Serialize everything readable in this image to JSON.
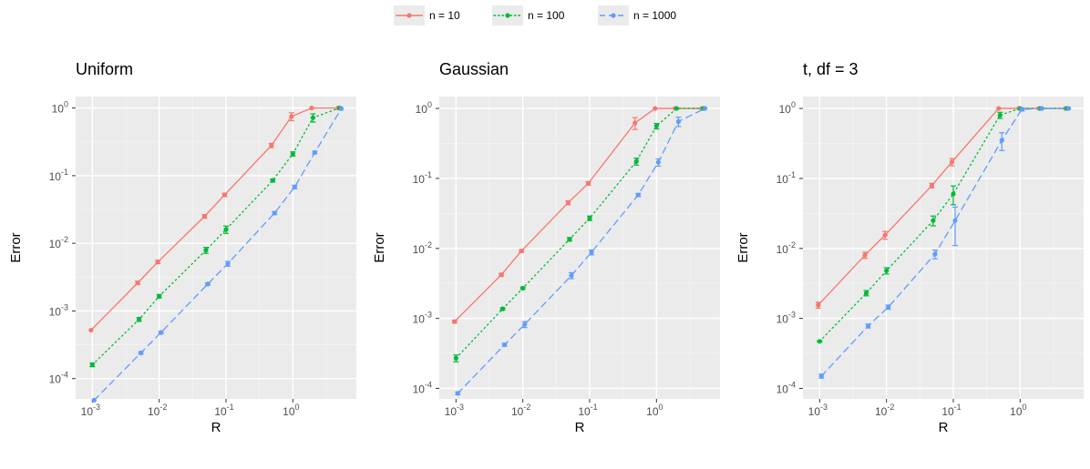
{
  "legend": {
    "items": [
      {
        "label": "n = 10",
        "color": "#F8766D",
        "dash": "solid"
      },
      {
        "label": "n = 100",
        "color": "#00BA38",
        "dash": "dotted"
      },
      {
        "label": "n = 1000",
        "color": "#619CFF",
        "dash": "dashed"
      }
    ]
  },
  "chart_data": [
    {
      "type": "line",
      "title": "Uniform",
      "xlabel": "R",
      "ylabel": "Error",
      "x_scale": "log10",
      "y_scale": "log10",
      "x_ticks": [
        "10^-3",
        "10^-2",
        "10^-1",
        "10^0"
      ],
      "y_ticks": [
        "10^-4",
        "10^-3",
        "10^-2",
        "10^-1",
        "10^0"
      ],
      "series": [
        {
          "name": "n = 10",
          "x": [
            0.001,
            0.005,
            0.01,
            0.05,
            0.1,
            0.5,
            1,
            2,
            5
          ],
          "y": [
            0.00052,
            0.0026,
            0.0053,
            0.025,
            0.052,
            0.28,
            0.75,
            1.0,
            1.0
          ],
          "err": [
            0,
            0.00015,
            0.0003,
            0.0015,
            0.003,
            0.02,
            0.1,
            0,
            0
          ]
        },
        {
          "name": "n = 100",
          "x": [
            0.001,
            0.005,
            0.01,
            0.05,
            0.1,
            0.5,
            1,
            2,
            5
          ],
          "y": [
            0.00016,
            0.00075,
            0.00165,
            0.0079,
            0.016,
            0.085,
            0.21,
            0.72,
            1.0
          ],
          "err": [
            1e-05,
            5e-05,
            0.0001,
            0.0008,
            0.002,
            0.004,
            0.015,
            0.1,
            0
          ]
        },
        {
          "name": "n = 1000",
          "x": [
            0.001,
            0.005,
            0.01,
            0.05,
            0.1,
            0.5,
            1,
            2,
            5
          ],
          "y": [
            4.8e-05,
            0.00024,
            0.00048,
            0.0025,
            0.005,
            0.028,
            0.068,
            0.22,
            0.98
          ],
          "err": [
            0,
            1e-05,
            2e-05,
            0.0001,
            0.0004,
            0.0015,
            0.004,
            0.01,
            0
          ]
        }
      ]
    },
    {
      "type": "line",
      "title": "Gaussian",
      "xlabel": "R",
      "ylabel": "Error",
      "x_scale": "log10",
      "y_scale": "log10",
      "x_ticks": [
        "10^-3",
        "10^-2",
        "10^-1",
        "10^0"
      ],
      "y_ticks": [
        "10^-4",
        "10^-3",
        "10^-2",
        "10^-1",
        "10^0"
      ],
      "series": [
        {
          "name": "n = 10",
          "x": [
            0.001,
            0.005,
            0.01,
            0.05,
            0.1,
            0.5,
            1,
            2,
            5
          ],
          "y": [
            0.0009,
            0.0042,
            0.0092,
            0.045,
            0.085,
            0.62,
            1.0,
            1.0,
            1.0
          ],
          "err": [
            4e-05,
            0.0002,
            0.0004,
            0.003,
            0.005,
            0.12,
            0,
            0,
            0
          ]
        },
        {
          "name": "n = 100",
          "x": [
            0.001,
            0.005,
            0.01,
            0.05,
            0.1,
            0.5,
            1,
            2,
            5
          ],
          "y": [
            0.00027,
            0.00137,
            0.0027,
            0.0135,
            0.027,
            0.175,
            0.56,
            1.0,
            1.0
          ],
          "err": [
            3e-05,
            5e-05,
            0.0001,
            0.0008,
            0.002,
            0.02,
            0.05,
            0,
            0
          ]
        },
        {
          "name": "n = 1000",
          "x": [
            0.001,
            0.005,
            0.01,
            0.05,
            0.1,
            0.5,
            1,
            2,
            5
          ],
          "y": [
            8.5e-05,
            0.00042,
            0.00082,
            0.0041,
            0.0088,
            0.058,
            0.17,
            0.65,
            1.0
          ],
          "err": [
            4e-06,
            2e-05,
            8e-05,
            0.0004,
            0.0007,
            0.003,
            0.02,
            0.1,
            0
          ]
        }
      ]
    },
    {
      "type": "line",
      "title": "t, df = 3",
      "xlabel": "R",
      "ylabel": "Error",
      "x_scale": "log10",
      "y_scale": "log10",
      "x_ticks": [
        "10^-3",
        "10^-2",
        "10^-1",
        "10^0"
      ],
      "y_ticks": [
        "10^-4",
        "10^-3",
        "10^-2",
        "10^-1",
        "10^0"
      ],
      "series": [
        {
          "name": "n = 10",
          "x": [
            0.001,
            0.005,
            0.01,
            0.05,
            0.1,
            0.5,
            1,
            2,
            5
          ],
          "y": [
            0.00155,
            0.008,
            0.0155,
            0.079,
            0.172,
            1.0,
            1.0,
            1.0,
            1.0
          ],
          "err": [
            0.00015,
            0.0008,
            0.002,
            0.006,
            0.02,
            0,
            0,
            0,
            0
          ]
        },
        {
          "name": "n = 100",
          "x": [
            0.001,
            0.005,
            0.01,
            0.05,
            0.1,
            0.5,
            1,
            2,
            5
          ],
          "y": [
            0.00047,
            0.0023,
            0.0048,
            0.025,
            0.06,
            0.8,
            1.0,
            1.0,
            1.0
          ],
          "err": [
            1e-05,
            0.0002,
            0.0005,
            0.004,
            0.018,
            0.08,
            0,
            0,
            0
          ]
        },
        {
          "name": "n = 1000",
          "x": [
            0.001,
            0.005,
            0.01,
            0.05,
            0.1,
            0.5,
            1,
            2,
            5
          ],
          "y": [
            0.00015,
            0.00078,
            0.00145,
            0.0083,
            0.025,
            0.35,
            0.97,
            1.0,
            1.0
          ],
          "err": [
            1e-05,
            5e-05,
            0.0001,
            0.0012,
            0.014,
            0.1,
            0.05,
            0,
            0
          ]
        }
      ]
    }
  ]
}
